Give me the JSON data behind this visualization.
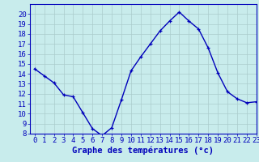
{
  "x": [
    0,
    1,
    2,
    3,
    4,
    5,
    6,
    7,
    8,
    9,
    10,
    11,
    12,
    13,
    14,
    15,
    16,
    17,
    18,
    19,
    20,
    21,
    22,
    23
  ],
  "y": [
    14.5,
    13.8,
    13.1,
    11.9,
    11.7,
    10.1,
    8.5,
    7.8,
    8.6,
    11.4,
    14.3,
    15.7,
    17.0,
    18.3,
    19.3,
    20.2,
    19.3,
    18.5,
    16.6,
    14.1,
    12.2,
    11.5,
    11.1,
    11.2
  ],
  "line_color": "#0000bb",
  "marker": "+",
  "marker_size": 3.5,
  "line_width": 1.0,
  "xlabel": "Graphe des températures (°c)",
  "xlabel_color": "#0000bb",
  "background_color": "#c8ecec",
  "grid_color": "#aacccc",
  "tick_color": "#0000bb",
  "axis_color": "#0000bb",
  "ylim": [
    8,
    21
  ],
  "xlim": [
    -0.5,
    23
  ],
  "yticks": [
    8,
    9,
    10,
    11,
    12,
    13,
    14,
    15,
    16,
    17,
    18,
    19,
    20
  ],
  "xticks": [
    0,
    1,
    2,
    3,
    4,
    5,
    6,
    7,
    8,
    9,
    10,
    11,
    12,
    13,
    14,
    15,
    16,
    17,
    18,
    19,
    20,
    21,
    22,
    23
  ],
  "xlabel_fontsize": 7.5,
  "tick_fontsize": 6.5
}
